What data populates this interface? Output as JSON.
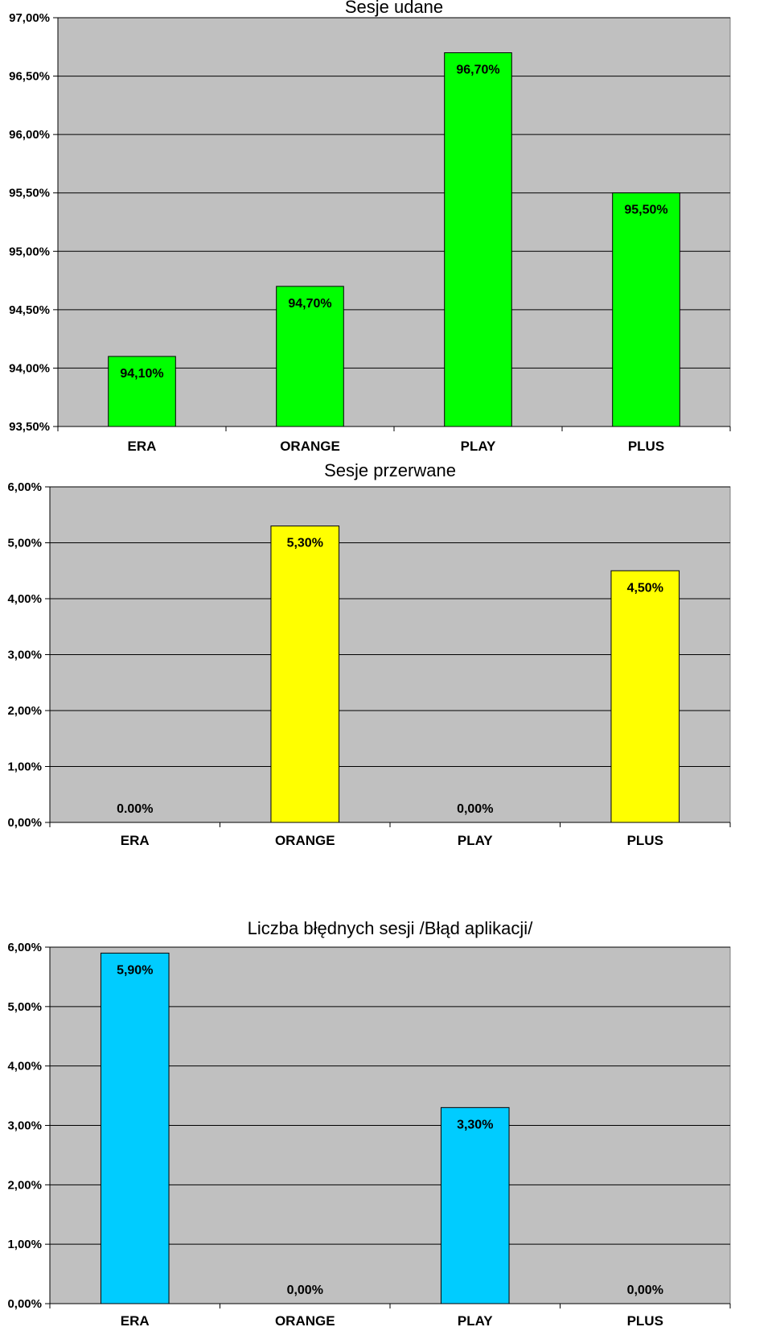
{
  "chart_data": [
    {
      "type": "bar",
      "title": "Sesje udane",
      "xlabel": "",
      "ylabel": "",
      "categories": [
        "ERA",
        "ORANGE",
        "PLAY",
        "PLUS"
      ],
      "values": [
        94.1,
        94.7,
        96.7,
        95.5
      ],
      "value_labels": [
        "94,10%",
        "94,70%",
        "96,70%",
        "95,50%"
      ],
      "ylim": [
        93.5,
        97.0
      ],
      "yticks": [
        93.5,
        94.0,
        94.5,
        95.0,
        95.5,
        96.0,
        96.5,
        97.0
      ],
      "ytick_labels": [
        "93,50%",
        "94,00%",
        "94,50%",
        "95,00%",
        "95,50%",
        "96,00%",
        "96,50%",
        "97,00%"
      ],
      "grid": true,
      "legend": "none",
      "bar_color": "#00ff00",
      "plot_background": "#c0c0c0"
    },
    {
      "type": "bar",
      "title": "Sesje przerwane",
      "xlabel": "",
      "ylabel": "",
      "categories": [
        "ERA",
        "ORANGE",
        "PLAY",
        "PLUS"
      ],
      "values": [
        0.0,
        5.3,
        0.0,
        4.5
      ],
      "value_labels": [
        "0.00%",
        "5,30%",
        "0,00%",
        "4,50%"
      ],
      "ylim": [
        0.0,
        6.0
      ],
      "yticks": [
        0,
        1,
        2,
        3,
        4,
        5,
        6
      ],
      "ytick_labels": [
        "0,00%",
        "1,00%",
        "2,00%",
        "3,00%",
        "4,00%",
        "5,00%",
        "6,00%"
      ],
      "grid": true,
      "legend": "none",
      "bar_color": "#ffff00",
      "plot_background": "#c0c0c0"
    },
    {
      "type": "bar",
      "title": "Liczba błędnych sesji /Błąd aplikacji/",
      "xlabel": "",
      "ylabel": "",
      "categories": [
        "ERA",
        "ORANGE",
        "PLAY",
        "PLUS"
      ],
      "values": [
        5.9,
        0.0,
        3.3,
        0.0
      ],
      "value_labels": [
        "5,90%",
        "0,00%",
        "3,30%",
        "0,00%"
      ],
      "ylim": [
        0.0,
        6.0
      ],
      "yticks": [
        0,
        1,
        2,
        3,
        4,
        5,
        6
      ],
      "ytick_labels": [
        "0,00%",
        "1,00%",
        "2,00%",
        "3,00%",
        "4,00%",
        "5,00%",
        "6,00%"
      ],
      "grid": true,
      "legend": "none",
      "bar_color": "#00ccff",
      "plot_background": "#c0c0c0"
    }
  ]
}
